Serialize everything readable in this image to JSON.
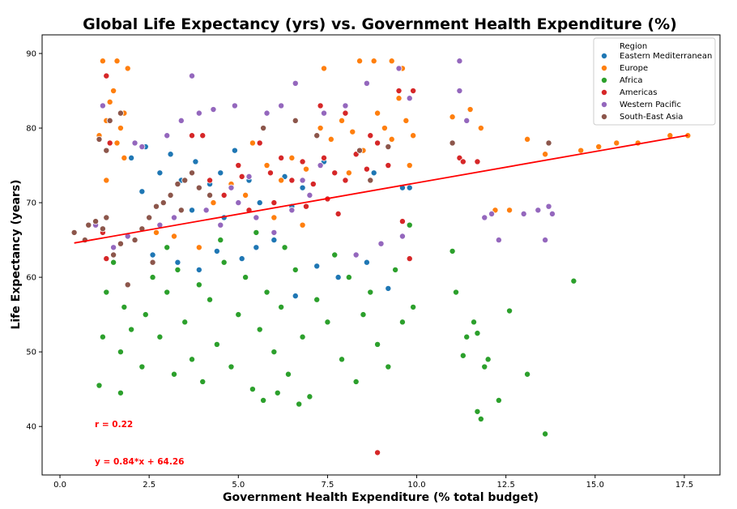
{
  "chart_data": {
    "type": "scatter",
    "title": "Global Life Expectancy (yrs) vs. Government Health Expenditure (%)",
    "xlabel": "Government Health Expenditure (% total budget)",
    "ylabel": "Life Expectancy (years)",
    "xlim": [
      -0.5,
      18.5
    ],
    "ylim": [
      33.5,
      92.5
    ],
    "xticks": [
      0.0,
      2.5,
      5.0,
      7.5,
      10.0,
      12.5,
      15.0,
      17.5
    ],
    "xtick_labels": [
      "0.0",
      "2.5",
      "5.0",
      "7.5",
      "10.0",
      "12.5",
      "15.0",
      "17.5"
    ],
    "yticks": [
      40,
      50,
      60,
      70,
      80,
      90
    ],
    "ytick_labels": [
      "40",
      "50",
      "60",
      "70",
      "80",
      "90"
    ],
    "grid": false,
    "legend": {
      "title": "Region",
      "placement": "top-right",
      "entries": [
        "Eastern Mediterranean",
        "Europe",
        "Africa",
        "Americas",
        "Western Pacific",
        "South-East Asia"
      ]
    },
    "series": [
      {
        "name": "Eastern Mediterranean",
        "color": "#1f77b4",
        "points": [
          [
            2.0,
            76
          ],
          [
            2.4,
            77.5
          ],
          [
            2.8,
            74
          ],
          [
            3.1,
            76.5
          ],
          [
            3.4,
            73
          ],
          [
            3.8,
            75.5
          ],
          [
            4.2,
            72.5
          ],
          [
            4.5,
            74
          ],
          [
            4.9,
            77
          ],
          [
            5.3,
            73
          ],
          [
            5.8,
            75
          ],
          [
            6.3,
            73.5
          ],
          [
            6.8,
            72
          ],
          [
            7.4,
            75.5
          ],
          [
            8.0,
            73
          ],
          [
            8.8,
            74
          ],
          [
            9.6,
            72
          ],
          [
            2.6,
            63
          ],
          [
            3.3,
            62
          ],
          [
            3.9,
            61
          ],
          [
            4.4,
            63.5
          ],
          [
            5.1,
            62.5
          ],
          [
            5.5,
            64
          ],
          [
            6.0,
            65
          ],
          [
            7.2,
            61.5
          ],
          [
            8.3,
            63
          ],
          [
            9.2,
            58.5
          ],
          [
            3.7,
            69
          ],
          [
            4.6,
            68
          ],
          [
            5.6,
            70
          ],
          [
            6.5,
            69.5
          ],
          [
            2.3,
            71.5
          ],
          [
            7.8,
            60
          ],
          [
            6.6,
            57.5
          ],
          [
            8.6,
            62
          ],
          [
            9.8,
            72
          ]
        ]
      },
      {
        "name": "Europe",
        "color": "#ff7f0e",
        "points": [
          [
            1.1,
            79
          ],
          [
            1.3,
            81
          ],
          [
            1.4,
            83.5
          ],
          [
            1.5,
            85
          ],
          [
            1.6,
            78
          ],
          [
            1.7,
            80
          ],
          [
            1.8,
            82
          ],
          [
            1.9,
            88
          ],
          [
            1.2,
            89
          ],
          [
            1.6,
            89
          ],
          [
            1.3,
            73
          ],
          [
            1.8,
            76
          ],
          [
            7.3,
            80
          ],
          [
            7.6,
            78.5
          ],
          [
            7.9,
            81
          ],
          [
            8.2,
            79.5
          ],
          [
            8.5,
            77
          ],
          [
            8.9,
            82
          ],
          [
            9.1,
            80
          ],
          [
            9.3,
            78.5
          ],
          [
            9.5,
            84
          ],
          [
            9.7,
            81
          ],
          [
            9.9,
            79
          ],
          [
            8.4,
            89
          ],
          [
            8.8,
            89
          ],
          [
            9.3,
            89
          ],
          [
            9.6,
            88
          ],
          [
            7.4,
            88
          ],
          [
            8.1,
            74
          ],
          [
            6.5,
            76
          ],
          [
            6.9,
            74.5
          ],
          [
            6.2,
            73
          ],
          [
            5.4,
            78
          ],
          [
            5.8,
            75
          ],
          [
            4.8,
            72.5
          ],
          [
            4.3,
            70
          ],
          [
            3.9,
            64
          ],
          [
            3.2,
            65.5
          ],
          [
            2.7,
            66
          ],
          [
            6.0,
            68
          ],
          [
            6.8,
            67
          ],
          [
            5.2,
            71
          ],
          [
            11.0,
            81.5
          ],
          [
            11.5,
            82.5
          ],
          [
            11.8,
            80
          ],
          [
            12.2,
            69
          ],
          [
            12.6,
            69
          ],
          [
            13.1,
            78.5
          ],
          [
            13.6,
            76.5
          ],
          [
            14.6,
            77
          ],
          [
            15.1,
            77.5
          ],
          [
            15.6,
            78
          ],
          [
            16.2,
            78
          ],
          [
            17.1,
            79
          ],
          [
            17.6,
            79
          ],
          [
            9.8,
            75
          ]
        ]
      },
      {
        "name": "Africa",
        "color": "#2ca02c",
        "points": [
          [
            1.1,
            45.5
          ],
          [
            1.2,
            52
          ],
          [
            1.3,
            58
          ],
          [
            1.5,
            62
          ],
          [
            1.7,
            50
          ],
          [
            1.8,
            56
          ],
          [
            2.0,
            53
          ],
          [
            2.3,
            48
          ],
          [
            2.4,
            55
          ],
          [
            2.6,
            60
          ],
          [
            2.8,
            52
          ],
          [
            3.0,
            58
          ],
          [
            3.2,
            47
          ],
          [
            3.3,
            61
          ],
          [
            3.5,
            54
          ],
          [
            3.7,
            49
          ],
          [
            3.9,
            59
          ],
          [
            4.0,
            46
          ],
          [
            4.2,
            57
          ],
          [
            4.4,
            51
          ],
          [
            4.6,
            62
          ],
          [
            4.8,
            48
          ],
          [
            5.0,
            55
          ],
          [
            5.2,
            60
          ],
          [
            5.4,
            45
          ],
          [
            5.6,
            53
          ],
          [
            5.8,
            58
          ],
          [
            6.0,
            50
          ],
          [
            6.2,
            56
          ],
          [
            6.4,
            47
          ],
          [
            6.6,
            61
          ],
          [
            6.8,
            52
          ],
          [
            7.0,
            44
          ],
          [
            7.2,
            57
          ],
          [
            7.5,
            54
          ],
          [
            7.7,
            63
          ],
          [
            7.9,
            49
          ],
          [
            8.1,
            60
          ],
          [
            8.3,
            46
          ],
          [
            8.5,
            55
          ],
          [
            8.7,
            58
          ],
          [
            8.9,
            51
          ],
          [
            9.2,
            48
          ],
          [
            9.4,
            61
          ],
          [
            9.6,
            54
          ],
          [
            9.8,
            67
          ],
          [
            4.5,
            65
          ],
          [
            5.5,
            66
          ],
          [
            6.3,
            64
          ],
          [
            3.0,
            64
          ],
          [
            11.0,
            63.5
          ],
          [
            11.1,
            58
          ],
          [
            11.4,
            52
          ],
          [
            11.6,
            54
          ],
          [
            11.7,
            42
          ],
          [
            11.8,
            41
          ],
          [
            11.9,
            48
          ],
          [
            12.0,
            49
          ],
          [
            12.3,
            43.5
          ],
          [
            12.6,
            55.5
          ],
          [
            13.1,
            47
          ],
          [
            13.6,
            39
          ],
          [
            14.4,
            59.5
          ],
          [
            11.7,
            52.5
          ],
          [
            11.3,
            49.5
          ],
          [
            1.7,
            44.5
          ],
          [
            5.7,
            43.5
          ],
          [
            6.1,
            44.5
          ],
          [
            6.7,
            43
          ],
          [
            9.9,
            56
          ]
        ]
      },
      {
        "name": "Americas",
        "color": "#d62728",
        "points": [
          [
            1.3,
            87
          ],
          [
            1.4,
            78
          ],
          [
            1.2,
            66
          ],
          [
            1.3,
            62.5
          ],
          [
            5.6,
            78
          ],
          [
            5.9,
            74
          ],
          [
            6.2,
            76
          ],
          [
            6.5,
            73
          ],
          [
            6.8,
            75.5
          ],
          [
            7.1,
            72.5
          ],
          [
            7.4,
            76
          ],
          [
            7.7,
            74
          ],
          [
            8.0,
            73
          ],
          [
            8.3,
            76.5
          ],
          [
            8.6,
            74.5
          ],
          [
            8.9,
            78
          ],
          [
            9.2,
            75
          ],
          [
            9.5,
            85
          ],
          [
            9.9,
            85
          ],
          [
            4.6,
            71
          ],
          [
            5.1,
            73.5
          ],
          [
            5.3,
            69
          ],
          [
            6.0,
            70
          ],
          [
            6.9,
            69.5
          ],
          [
            7.5,
            70.5
          ],
          [
            4.0,
            79
          ],
          [
            5.0,
            75
          ],
          [
            7.3,
            83
          ],
          [
            8.0,
            82
          ],
          [
            8.7,
            79
          ],
          [
            8.9,
            36.5
          ],
          [
            9.8,
            62.5
          ],
          [
            9.6,
            67.5
          ],
          [
            11.2,
            76
          ],
          [
            11.3,
            75.5
          ],
          [
            11.7,
            75.5
          ],
          [
            3.7,
            79
          ],
          [
            4.2,
            73
          ],
          [
            7.8,
            68.5
          ]
        ]
      },
      {
        "name": "Western Pacific",
        "color": "#9467bd",
        "points": [
          [
            1.0,
            67
          ],
          [
            1.2,
            83
          ],
          [
            1.5,
            64
          ],
          [
            1.9,
            65.5
          ],
          [
            2.1,
            78
          ],
          [
            2.3,
            77.5
          ],
          [
            3.0,
            79
          ],
          [
            3.4,
            81
          ],
          [
            3.7,
            87
          ],
          [
            3.9,
            82
          ],
          [
            4.3,
            82.5
          ],
          [
            4.9,
            83
          ],
          [
            5.8,
            82
          ],
          [
            6.2,
            83
          ],
          [
            7.4,
            82
          ],
          [
            8.0,
            83
          ],
          [
            8.6,
            86
          ],
          [
            9.5,
            88
          ],
          [
            9.8,
            84
          ],
          [
            4.1,
            69
          ],
          [
            4.5,
            67
          ],
          [
            5.0,
            70
          ],
          [
            5.5,
            68
          ],
          [
            6.0,
            66
          ],
          [
            6.5,
            69
          ],
          [
            7.0,
            71
          ],
          [
            3.2,
            68
          ],
          [
            2.8,
            67
          ],
          [
            4.8,
            72
          ],
          [
            5.3,
            73.5
          ],
          [
            6.8,
            73
          ],
          [
            7.3,
            75
          ],
          [
            8.3,
            63
          ],
          [
            9.0,
            64.5
          ],
          [
            9.6,
            65.5
          ],
          [
            11.2,
            89
          ],
          [
            11.2,
            85
          ],
          [
            11.4,
            81
          ],
          [
            11.9,
            68
          ],
          [
            12.1,
            68.5
          ],
          [
            12.3,
            65
          ],
          [
            13.0,
            68.5
          ],
          [
            13.6,
            65
          ],
          [
            13.7,
            69.5
          ],
          [
            13.4,
            69
          ],
          [
            13.8,
            68.5
          ],
          [
            6.6,
            86
          ]
        ]
      },
      {
        "name": "South-East Asia",
        "color": "#8c564b",
        "points": [
          [
            0.4,
            66
          ],
          [
            0.7,
            65
          ],
          [
            0.8,
            67
          ],
          [
            1.0,
            67.5
          ],
          [
            1.2,
            66.5
          ],
          [
            1.3,
            68
          ],
          [
            1.5,
            63
          ],
          [
            1.7,
            64.5
          ],
          [
            1.9,
            59
          ],
          [
            2.1,
            65
          ],
          [
            2.3,
            66.5
          ],
          [
            2.5,
            68
          ],
          [
            2.7,
            69.5
          ],
          [
            2.9,
            70
          ],
          [
            3.1,
            71
          ],
          [
            3.3,
            72.5
          ],
          [
            3.5,
            73
          ],
          [
            3.7,
            74
          ],
          [
            3.9,
            72
          ],
          [
            4.2,
            71
          ],
          [
            3.4,
            69
          ],
          [
            2.6,
            62
          ],
          [
            1.1,
            78.5
          ],
          [
            1.4,
            81
          ],
          [
            1.7,
            82
          ],
          [
            1.3,
            77
          ],
          [
            5.7,
            80
          ],
          [
            6.6,
            81
          ],
          [
            7.2,
            79
          ],
          [
            8.4,
            77
          ],
          [
            9.2,
            77.5
          ],
          [
            13.7,
            78
          ],
          [
            11.0,
            78
          ],
          [
            8.7,
            73
          ]
        ]
      }
    ],
    "regression": {
      "x": [
        0.4,
        17.6
      ],
      "equation": "y = 0.84*x + 64.26",
      "slope": 0.84,
      "intercept": 64.26,
      "color": "#ff0000"
    },
    "annotations": [
      "r = 0.22",
      "y = 0.84*x + 64.26"
    ]
  }
}
